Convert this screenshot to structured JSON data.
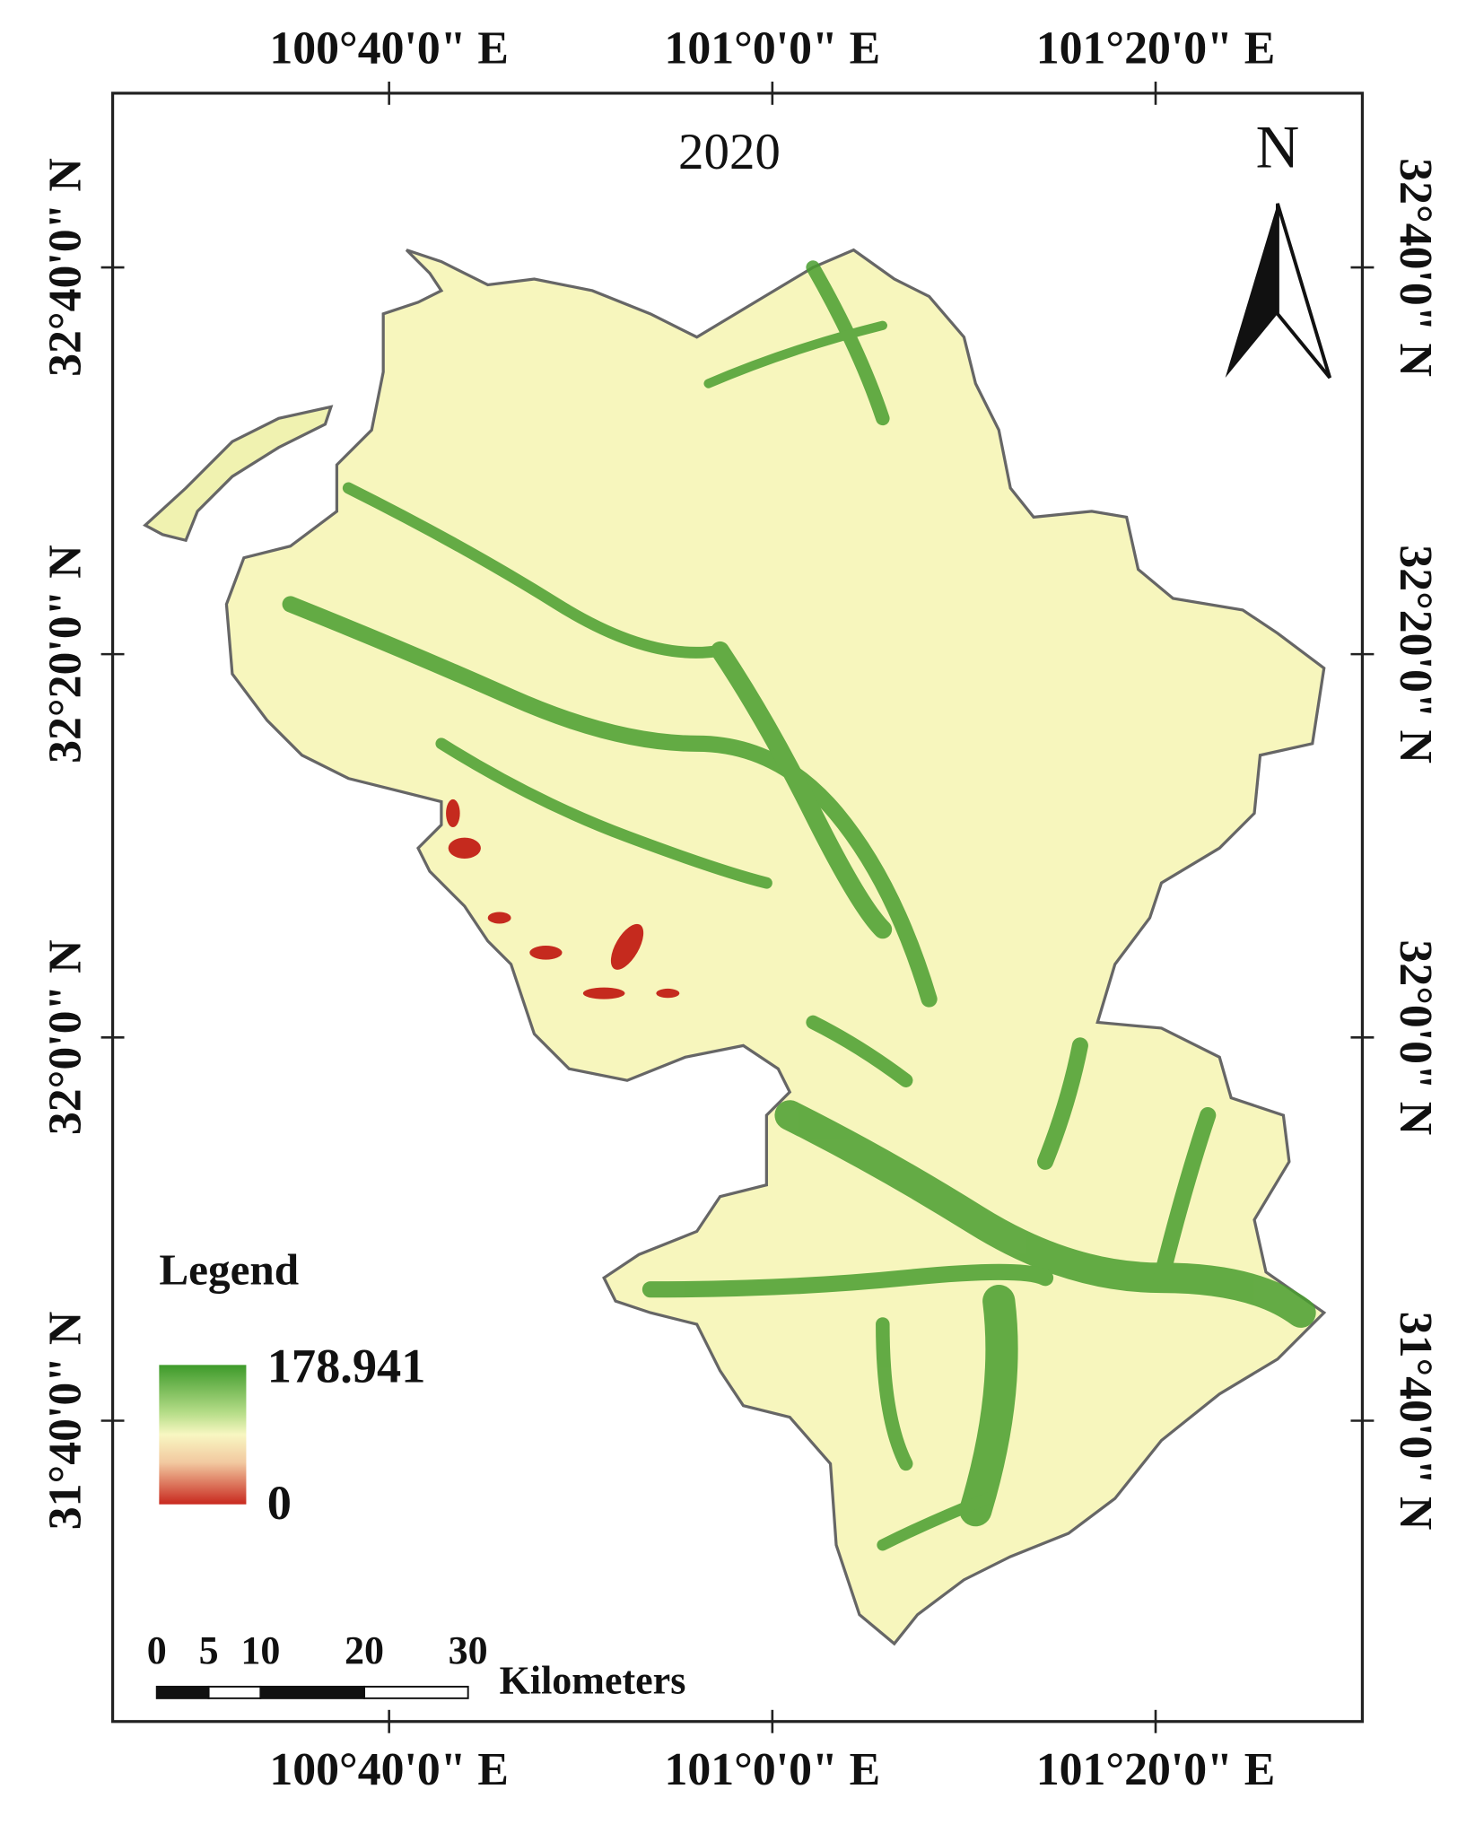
{
  "map": {
    "title": "2020",
    "north_label": "N",
    "longitude_labels": [
      "100°40'0\" E",
      "101°0'0\" E",
      "101°20'0\" E"
    ],
    "latitude_labels": [
      "32°40'0\" N",
      "32°20'0\" N",
      "32°0'0\" N",
      "31°40'0\" N"
    ],
    "legend": {
      "title": "Legend",
      "max": 178.941,
      "min": 0
    },
    "scale_bar": {
      "ticks": [
        0,
        5,
        10,
        20,
        30
      ],
      "unit": "Kilometers"
    }
  }
}
